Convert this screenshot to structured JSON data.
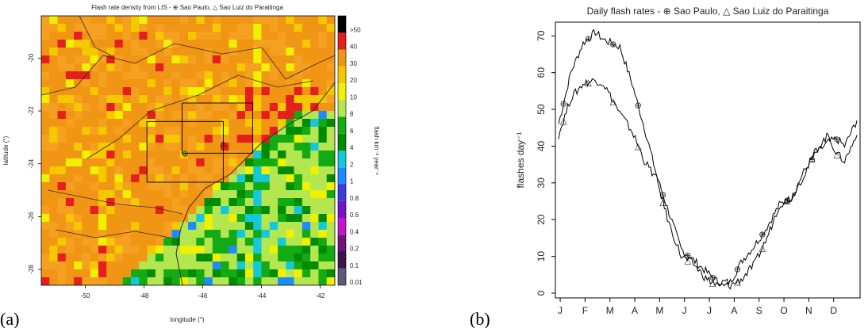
{
  "panels": {
    "a_label": "(a)",
    "b_label": "(b)"
  },
  "chart_data": [
    {
      "type": "heatmap",
      "title": "Flash rate density from LIS - ⊕ Sao Paulo, △ Sao Luiz do Paraitinga",
      "xlabel": "longitude (°)",
      "ylabel": "latitude (°)",
      "x_ticks": [
        "-50",
        "-48",
        "-46",
        "-44",
        "-42"
      ],
      "y_ticks": [
        "-20",
        "-22",
        "-24",
        "-26",
        "-28"
      ],
      "xlim": [
        -51.5,
        -41.5
      ],
      "ylim": [
        -28.6,
        -18.4
      ],
      "colorbar_label": "flash km⁻² year⁻¹",
      "colorbar_levels": [
        "0.01",
        "0.1",
        "0.2",
        "0.4",
        "0.6",
        "0.8",
        "1",
        "2",
        "4",
        "6",
        "8",
        "10",
        "20",
        "30",
        "40",
        ">50"
      ],
      "colorbar_colors": [
        "#5a5a78",
        "#3c1446",
        "#6e1478",
        "#c814c8",
        "#7814c8",
        "#3c3cdc",
        "#1e8cff",
        "#14c8dc",
        "#008c00",
        "#14aa14",
        "#b4e650",
        "#f0f000",
        "#f5c800",
        "#f09614",
        "#e61e1e",
        "#000000"
      ],
      "markers": [
        {
          "name": "Sao Paulo",
          "symbol": "⊕",
          "lon": -46.6,
          "lat": -23.6
        },
        {
          "name": "Sao Luiz do Paraitinga",
          "symbol": "△",
          "lon": -45.3,
          "lat": -23.2
        }
      ],
      "boxes": [
        {
          "lon": [
            -47.9,
            -45.3
          ],
          "lat": [
            -24.7,
            -22.4
          ]
        },
        {
          "lon": [
            -46.7,
            -44.3
          ],
          "lat": [
            -23.6,
            -21.7
          ]
        }
      ]
    },
    {
      "type": "line",
      "title": "Daily flash rates - ⊕ Sao Paulo, △ Sao Luiz do Paraitinga",
      "xlabel": "",
      "ylabel": "flashes day⁻¹",
      "categories": [
        "J",
        "F",
        "M",
        "A",
        "M",
        "J",
        "J",
        "A",
        "S",
        "O",
        "N",
        "D"
      ],
      "ylim": [
        0,
        72
      ],
      "y_ticks": [
        0,
        10,
        20,
        30,
        40,
        50,
        60,
        70
      ],
      "series": [
        {
          "name": "Sao Paulo",
          "marker": "⊕",
          "x": [
            0,
            15,
            30,
            45,
            55,
            75,
            90,
            105,
            120,
            135,
            150,
            165,
            180,
            195,
            210,
            225,
            240,
            255,
            270,
            285,
            300,
            315,
            330,
            340,
            350,
            365
          ],
          "values": [
            46,
            60,
            68,
            71,
            69,
            67,
            57,
            45,
            32,
            22,
            12,
            9,
            6,
            3,
            3,
            9,
            13,
            18,
            24,
            26,
            33,
            38,
            41,
            42,
            40,
            47
          ]
        },
        {
          "name": "Sao Luiz do Paraitinga",
          "marker": "△",
          "x": [
            0,
            15,
            30,
            45,
            55,
            75,
            90,
            105,
            120,
            135,
            150,
            165,
            180,
            195,
            210,
            225,
            240,
            255,
            270,
            285,
            300,
            315,
            330,
            340,
            350,
            365
          ],
          "values": [
            43,
            53,
            57,
            58,
            57,
            49,
            44,
            36,
            31,
            19,
            10,
            8,
            4,
            2,
            2,
            4,
            8,
            15,
            24,
            26,
            32,
            39,
            43,
            38,
            36,
            43
          ]
        }
      ]
    }
  ]
}
